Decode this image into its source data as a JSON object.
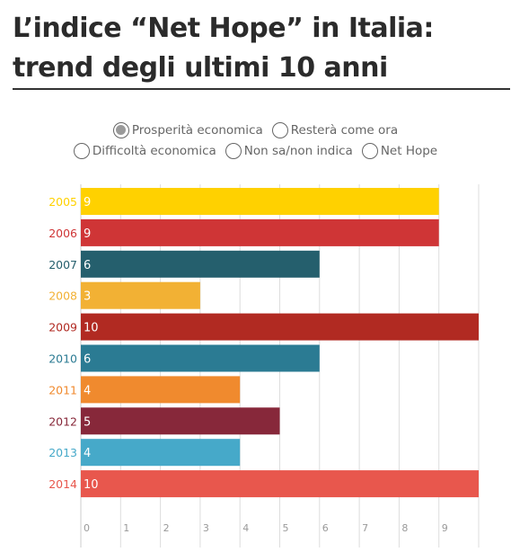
{
  "header": {
    "title": "L’indice “Net Hope” in Italia: trend degli ultimi 10 anni"
  },
  "options": {
    "row1": [
      {
        "label": "Prosperità economica",
        "selected": true
      },
      {
        "label": "Resterà come ora",
        "selected": false
      }
    ],
    "row2": [
      {
        "label": "Difficoltà economica",
        "selected": false
      },
      {
        "label": "Non sa/non indica",
        "selected": false
      },
      {
        "label": "Net Hope",
        "selected": false
      }
    ]
  },
  "chart_data": {
    "type": "bar",
    "orientation": "horizontal",
    "title": "",
    "xlabel": "",
    "ylabel": "",
    "categories": [
      "2005",
      "2006",
      "2007",
      "2008",
      "2009",
      "2010",
      "2011",
      "2012",
      "2013",
      "2014"
    ],
    "values": [
      9,
      9,
      6,
      3,
      10,
      6,
      4,
      5,
      4,
      10
    ],
    "value_labels": [
      "9",
      "9",
      "6",
      "3",
      "10",
      "6",
      "4",
      "5",
      "4",
      "10"
    ],
    "colors": [
      "#FFD100",
      "#CF3536",
      "#255F6D",
      "#F2B134",
      "#B12A22",
      "#2B7B93",
      "#F08A2E",
      "#87283A",
      "#46A9C9",
      "#E8574D"
    ],
    "xlim": [
      0,
      10
    ],
    "xticks": [
      "0",
      "1",
      "2",
      "3",
      "4",
      "5",
      "6",
      "7",
      "8",
      "9"
    ],
    "grid": true,
    "grid_color": "#dddddd"
  }
}
